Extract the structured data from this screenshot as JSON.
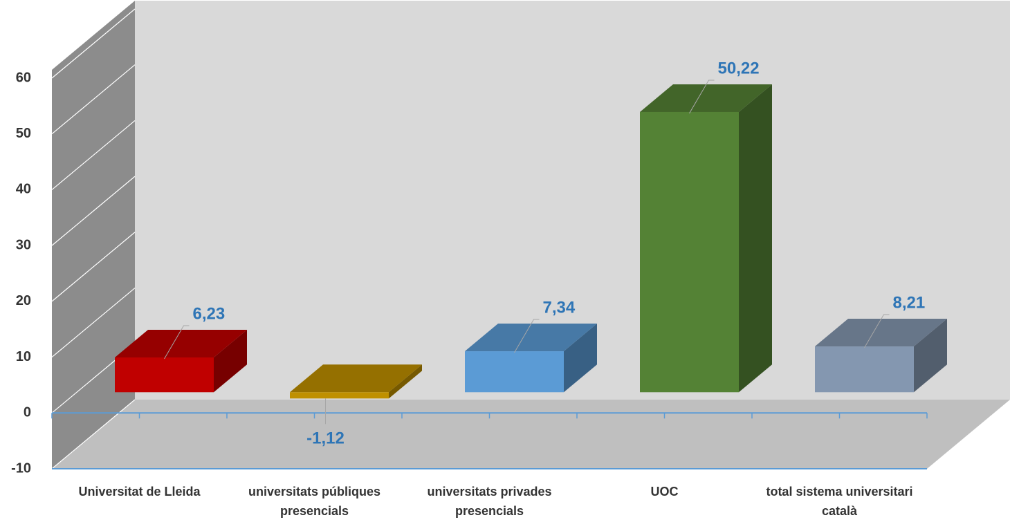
{
  "chart_data": {
    "type": "bar3d",
    "categories": [
      "Universitat de Lleida",
      "universitats públiques presencials",
      "universitats privades presencials",
      "UOC",
      "total sistema universitari català"
    ],
    "values": [
      6.23,
      -1.12,
      7.34,
      50.22,
      8.21
    ],
    "value_labels": [
      "6,23",
      "-1,12",
      "7,34",
      "50,22",
      "8,21"
    ],
    "colors": [
      "#c00000",
      "#bf9000",
      "#5b9bd5",
      "#548235",
      "#8497b0"
    ],
    "ylim": [
      -10,
      60
    ],
    "yticks": [
      -10,
      0,
      10,
      20,
      30,
      40,
      50,
      60
    ],
    "grid": true
  }
}
